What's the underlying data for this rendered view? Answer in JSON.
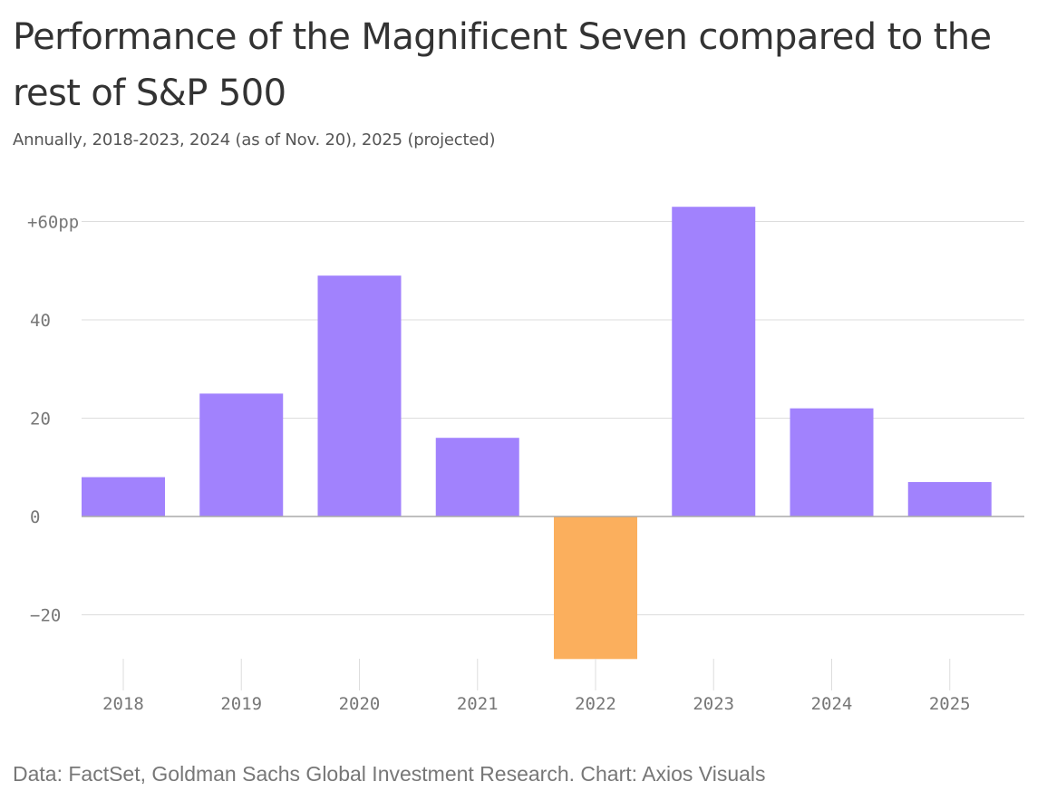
{
  "title": "Performance of the Magnificent Seven compared to the rest of S&P 500",
  "subtitle": "Annually, 2018-2023, 2024 (as of Nov. 20), 2025 (projected)",
  "source": "Data: FactSet, Goldman Sachs Global Investment Research. Chart: Axios Visuals",
  "colors": {
    "positive": "#a182fd",
    "negative": "#fbaf5d",
    "grid": "#dddddd",
    "zero_line": "#aaaaaa",
    "tick_text": "#777777"
  },
  "chart_data": {
    "type": "bar",
    "title": "Performance of the Magnificent Seven compared to the rest of S&P 500",
    "subtitle": "Annually, 2018-2023, 2024 (as of Nov. 20), 2025 (projected)",
    "xlabel": "",
    "ylabel": "",
    "categories": [
      "2018",
      "2019",
      "2020",
      "2021",
      "2022",
      "2023",
      "2024",
      "2025"
    ],
    "values": [
      8,
      25,
      49,
      16,
      -29,
      63,
      22,
      7
    ],
    "ylim": [
      -29,
      63
    ],
    "yticks": [
      -20,
      0,
      20,
      40,
      60
    ],
    "ytick_labels": [
      "−20",
      "0",
      "20",
      "40",
      "+60pp"
    ],
    "grid": true,
    "legend": "none"
  }
}
